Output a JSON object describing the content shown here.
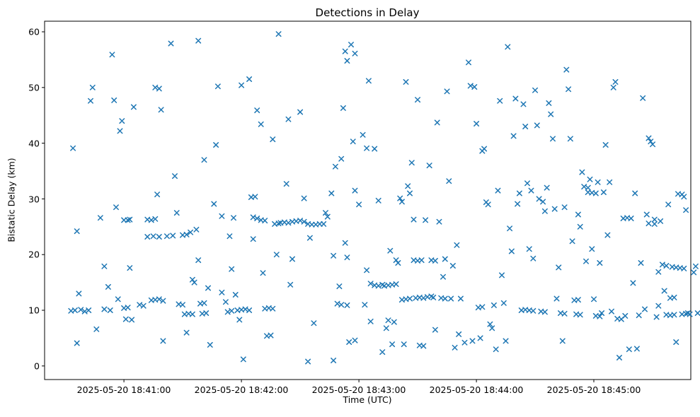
{
  "figure": {
    "title": "Detections in Delay",
    "xlabel": "Time (UTC)",
    "ylabel": "Bistatic Delay (km)"
  },
  "chart_data": {
    "type": "scatter",
    "title": "Detections in Delay",
    "xlabel": "Time (UTC)",
    "ylabel": "Bistatic Delay (km)",
    "marker": "x",
    "marker_color": "#1f77b4",
    "legend": "none",
    "grid": false,
    "x_tick_labels": [
      "2025-05-20 18:41:00",
      "2025-05-20 18:42:00",
      "2025-05-20 18:43:00",
      "2025-05-20 18:44:00",
      "2025-05-20 18:45:00"
    ],
    "x_tick_seconds": [
      60,
      120,
      180,
      240,
      300
    ],
    "x_time_base": "2025-05-20 18:40:00 UTC, x values are seconds after base",
    "xlim_seconds": [
      19.5,
      349.5
    ],
    "y_ticks": [
      0,
      10,
      20,
      30,
      40,
      50,
      60
    ],
    "ylim": [
      -2.43,
      61.9
    ],
    "points": [
      [
        34,
        39.1
      ],
      [
        36,
        24.2
      ],
      [
        37,
        13.0
      ],
      [
        33,
        9.9
      ],
      [
        35,
        10.0
      ],
      [
        38,
        10.1
      ],
      [
        40,
        9.8
      ],
      [
        42,
        10.0
      ],
      [
        36,
        4.1
      ],
      [
        44,
        50.0
      ],
      [
        43,
        47.6
      ],
      [
        46,
        6.6
      ],
      [
        48,
        26.6
      ],
      [
        50,
        17.9
      ],
      [
        52,
        14.2
      ],
      [
        50,
        10.2
      ],
      [
        53,
        10.0
      ],
      [
        54,
        55.9
      ],
      [
        55,
        47.7
      ],
      [
        56,
        28.5
      ],
      [
        57,
        12.0
      ],
      [
        58,
        42.2
      ],
      [
        59,
        44.0
      ],
      [
        60,
        26.2
      ],
      [
        62,
        26.2
      ],
      [
        63,
        26.3
      ],
      [
        60,
        10.4
      ],
      [
        62,
        10.5
      ],
      [
        61,
        8.4
      ],
      [
        64,
        8.3
      ],
      [
        63,
        17.6
      ],
      [
        65,
        46.5
      ],
      [
        68,
        11.0
      ],
      [
        70,
        10.8
      ],
      [
        72,
        26.3
      ],
      [
        74,
        26.2
      ],
      [
        76,
        26.4
      ],
      [
        72,
        23.2
      ],
      [
        75,
        23.3
      ],
      [
        78,
        23.2
      ],
      [
        74,
        11.8
      ],
      [
        76,
        11.9
      ],
      [
        78,
        12.0
      ],
      [
        80,
        11.7
      ],
      [
        76,
        50.0
      ],
      [
        78,
        49.8
      ],
      [
        77,
        30.8
      ],
      [
        79,
        46.0
      ],
      [
        80,
        4.5
      ],
      [
        82,
        23.3
      ],
      [
        85,
        23.4
      ],
      [
        84,
        57.9
      ],
      [
        86,
        34.1
      ],
      [
        87,
        27.5
      ],
      [
        88,
        11.1
      ],
      [
        90,
        11.0
      ],
      [
        90,
        23.5
      ],
      [
        92,
        23.6
      ],
      [
        94,
        24.0
      ],
      [
        91,
        9.3
      ],
      [
        93,
        9.4
      ],
      [
        95,
        9.3
      ],
      [
        92,
        6.0
      ],
      [
        95,
        15.5
      ],
      [
        96,
        15.0
      ],
      [
        97,
        24.5
      ],
      [
        98,
        58.4
      ],
      [
        98,
        19.0
      ],
      [
        99,
        11.2
      ],
      [
        101,
        11.3
      ],
      [
        100,
        9.4
      ],
      [
        102,
        9.5
      ],
      [
        101,
        37.0
      ],
      [
        103,
        14.0
      ],
      [
        104,
        3.8
      ],
      [
        106,
        29.1
      ],
      [
        107,
        39.7
      ],
      [
        108,
        50.2
      ],
      [
        110,
        26.9
      ],
      [
        110,
        13.2
      ],
      [
        112,
        11.5
      ],
      [
        113,
        9.7
      ],
      [
        115,
        9.9
      ],
      [
        114,
        23.3
      ],
      [
        115,
        17.4
      ],
      [
        116,
        26.6
      ],
      [
        117,
        12.8
      ],
      [
        118,
        10.0
      ],
      [
        120,
        10.1
      ],
      [
        122,
        10.2
      ],
      [
        124,
        10.0
      ],
      [
        119,
        8.3
      ],
      [
        120,
        50.4
      ],
      [
        121,
        1.2
      ],
      [
        124,
        51.5
      ],
      [
        125,
        30.3
      ],
      [
        127,
        30.4
      ],
      [
        126,
        26.7
      ],
      [
        128,
        26.5
      ],
      [
        126,
        22.8
      ],
      [
        128,
        45.9
      ],
      [
        130,
        43.4
      ],
      [
        130,
        26.2
      ],
      [
        132,
        26.1
      ],
      [
        131,
        16.7
      ],
      [
        132,
        10.3
      ],
      [
        134,
        10.4
      ],
      [
        136,
        10.3
      ],
      [
        133,
        5.4
      ],
      [
        135,
        5.5
      ],
      [
        136,
        40.7
      ],
      [
        137,
        25.5
      ],
      [
        139,
        25.6
      ],
      [
        138,
        20.0
      ],
      [
        139,
        59.6
      ],
      [
        140,
        25.7
      ],
      [
        142,
        25.8
      ],
      [
        144,
        25.7
      ],
      [
        146,
        25.9
      ],
      [
        143,
        32.7
      ],
      [
        144,
        44.3
      ],
      [
        145,
        14.6
      ],
      [
        146,
        19.2
      ],
      [
        148,
        26.0
      ],
      [
        150,
        26.1
      ],
      [
        152,
        25.9
      ],
      [
        150,
        45.6
      ],
      [
        152,
        30.1
      ],
      [
        154,
        25.5
      ],
      [
        156,
        25.4
      ],
      [
        155,
        23.0
      ],
      [
        157,
        7.7
      ],
      [
        158,
        25.4
      ],
      [
        160,
        25.5
      ],
      [
        162,
        25.5
      ],
      [
        154,
        0.8
      ],
      [
        163,
        27.5
      ],
      [
        164,
        26.8
      ],
      [
        166,
        31.0
      ],
      [
        167,
        19.8
      ],
      [
        168,
        35.8
      ],
      [
        169,
        11.2
      ],
      [
        171,
        11.0
      ],
      [
        170,
        14.3
      ],
      [
        171,
        37.2
      ],
      [
        172,
        46.3
      ],
      [
        173,
        22.1
      ],
      [
        174,
        19.5
      ],
      [
        174,
        10.9
      ],
      [
        175,
        4.3
      ],
      [
        167,
        1.0
      ],
      [
        177,
        40.3
      ],
      [
        178,
        4.6
      ],
      [
        173,
        56.5
      ],
      [
        176,
        57.7
      ],
      [
        174,
        54.8
      ],
      [
        178,
        31.5
      ],
      [
        180,
        29.0
      ],
      [
        182,
        41.5
      ],
      [
        184,
        39.1
      ],
      [
        190,
        29.7
      ],
      [
        185,
        51.2
      ],
      [
        178,
        56.1
      ],
      [
        183,
        11.0
      ],
      [
        184,
        17.2
      ],
      [
        186,
        14.8
      ],
      [
        188,
        14.5
      ],
      [
        190,
        14.4
      ],
      [
        192,
        14.6
      ],
      [
        193,
        14.4
      ],
      [
        195,
        14.5
      ],
      [
        197,
        14.6
      ],
      [
        199,
        14.7
      ],
      [
        186,
        8.0
      ],
      [
        192,
        2.5
      ],
      [
        194,
        6.8
      ],
      [
        195,
        8.2
      ],
      [
        188,
        39.0
      ],
      [
        196,
        20.7
      ],
      [
        197,
        3.9
      ],
      [
        198,
        7.9
      ],
      [
        199,
        19.0
      ],
      [
        200,
        18.5
      ],
      [
        201,
        30.1
      ],
      [
        202,
        29.5
      ],
      [
        202,
        11.9
      ],
      [
        204,
        12.0
      ],
      [
        206,
        12.1
      ],
      [
        203,
        3.9
      ],
      [
        204,
        51.0
      ],
      [
        205,
        32.3
      ],
      [
        206,
        31.0
      ],
      [
        207,
        36.5
      ],
      [
        208,
        26.3
      ],
      [
        208,
        19.0
      ],
      [
        210,
        18.9
      ],
      [
        212,
        19.0
      ],
      [
        209,
        12.2
      ],
      [
        211,
        12.3
      ],
      [
        213,
        12.2
      ],
      [
        210,
        47.8
      ],
      [
        211,
        3.7
      ],
      [
        213,
        3.6
      ],
      [
        214,
        26.2
      ],
      [
        215,
        12.4
      ],
      [
        217,
        12.5
      ],
      [
        216,
        36.0
      ],
      [
        217,
        19.0
      ],
      [
        219,
        18.9
      ],
      [
        218,
        12.3
      ],
      [
        219,
        6.5
      ],
      [
        220,
        43.7
      ],
      [
        221,
        25.9
      ],
      [
        222,
        12.2
      ],
      [
        224,
        12.1
      ],
      [
        223,
        16.0
      ],
      [
        224,
        19.2
      ],
      [
        225,
        49.3
      ],
      [
        226,
        33.2
      ],
      [
        227,
        12.1
      ],
      [
        228,
        18.0
      ],
      [
        229,
        3.3
      ],
      [
        230,
        21.7
      ],
      [
        231,
        5.7
      ],
      [
        232,
        12.1
      ],
      [
        234,
        4.2
      ],
      [
        236,
        54.5
      ],
      [
        237,
        50.3
      ],
      [
        238,
        4.5
      ],
      [
        239,
        50.1
      ],
      [
        240,
        43.5
      ],
      [
        241,
        10.5
      ],
      [
        243,
        10.6
      ],
      [
        242,
        5.0
      ],
      [
        243,
        38.6
      ],
      [
        244,
        39.0
      ],
      [
        245,
        29.4
      ],
      [
        246,
        29.0
      ],
      [
        247,
        7.5
      ],
      [
        248,
        6.8
      ],
      [
        249,
        10.9
      ],
      [
        250,
        3.0
      ],
      [
        251,
        31.5
      ],
      [
        252,
        47.6
      ],
      [
        253,
        16.3
      ],
      [
        254,
        11.3
      ],
      [
        255,
        4.5
      ],
      [
        256,
        57.3
      ],
      [
        257,
        24.7
      ],
      [
        258,
        20.6
      ],
      [
        259,
        41.3
      ],
      [
        260,
        48.0
      ],
      [
        261,
        29.1
      ],
      [
        262,
        31.0
      ],
      [
        263,
        10.0
      ],
      [
        265,
        10.1
      ],
      [
        267,
        10.0
      ],
      [
        269,
        9.9
      ],
      [
        264,
        47.0
      ],
      [
        265,
        43.0
      ],
      [
        266,
        32.8
      ],
      [
        267,
        21.0
      ],
      [
        268,
        31.5
      ],
      [
        269,
        19.3
      ],
      [
        270,
        49.5
      ],
      [
        271,
        43.2
      ],
      [
        272,
        30.0
      ],
      [
        273,
        9.8
      ],
      [
        275,
        9.7
      ],
      [
        274,
        29.5
      ],
      [
        275,
        27.8
      ],
      [
        276,
        32.0
      ],
      [
        277,
        47.2
      ],
      [
        278,
        45.2
      ],
      [
        279,
        40.8
      ],
      [
        280,
        28.2
      ],
      [
        281,
        12.1
      ],
      [
        282,
        17.7
      ],
      [
        283,
        9.5
      ],
      [
        285,
        9.4
      ],
      [
        284,
        4.5
      ],
      [
        285,
        28.5
      ],
      [
        286,
        53.2
      ],
      [
        287,
        49.7
      ],
      [
        288,
        40.8
      ],
      [
        289,
        22.4
      ],
      [
        290,
        11.8
      ],
      [
        292,
        11.9
      ],
      [
        291,
        9.3
      ],
      [
        293,
        9.2
      ],
      [
        292,
        27.2
      ],
      [
        293,
        25.0
      ],
      [
        294,
        34.8
      ],
      [
        295,
        32.2
      ],
      [
        297,
        32.0
      ],
      [
        296,
        18.8
      ],
      [
        297,
        31.2
      ],
      [
        299,
        31.1
      ],
      [
        301,
        31.0
      ],
      [
        298,
        33.5
      ],
      [
        299,
        21.0
      ],
      [
        300,
        12.0
      ],
      [
        301,
        9.0
      ],
      [
        303,
        8.9
      ],
      [
        302,
        33.0
      ],
      [
        303,
        18.5
      ],
      [
        304,
        9.5
      ],
      [
        305,
        31.2
      ],
      [
        306,
        39.7
      ],
      [
        307,
        23.5
      ],
      [
        308,
        33.0
      ],
      [
        309,
        9.8
      ],
      [
        310,
        50.0
      ],
      [
        311,
        51.0
      ],
      [
        312,
        8.5
      ],
      [
        314,
        8.4
      ],
      [
        313,
        1.5
      ],
      [
        315,
        26.5
      ],
      [
        317,
        26.6
      ],
      [
        319,
        26.5
      ],
      [
        316,
        9.0
      ],
      [
        318,
        3.0
      ],
      [
        320,
        14.9
      ],
      [
        321,
        31.0
      ],
      [
        322,
        3.1
      ],
      [
        323,
        9.1
      ],
      [
        324,
        18.5
      ],
      [
        325,
        48.1
      ],
      [
        326,
        10.2
      ],
      [
        327,
        27.2
      ],
      [
        328,
        40.9
      ],
      [
        329,
        40.3
      ],
      [
        330,
        39.8
      ],
      [
        328,
        25.6
      ],
      [
        331,
        25.5
      ],
      [
        331,
        26.3
      ],
      [
        332,
        8.8
      ],
      [
        333,
        10.8
      ],
      [
        333,
        16.9
      ],
      [
        334,
        26.0
      ],
      [
        335,
        18.2
      ],
      [
        337,
        18.0
      ],
      [
        336,
        13.5
      ],
      [
        337,
        9.2
      ],
      [
        339,
        9.1
      ],
      [
        341,
        9.2
      ],
      [
        338,
        29.0
      ],
      [
        339,
        12.2
      ],
      [
        341,
        12.3
      ],
      [
        340,
        17.8
      ],
      [
        342,
        17.7
      ],
      [
        344,
        17.6
      ],
      [
        342,
        4.3
      ],
      [
        343,
        30.9
      ],
      [
        345,
        30.8
      ],
      [
        345,
        9.3
      ],
      [
        347,
        9.4
      ],
      [
        349,
        9.3
      ],
      [
        346,
        17.5
      ],
      [
        347,
        28.0
      ],
      [
        348,
        9.5
      ],
      [
        346,
        30.4
      ],
      [
        351,
        16.8
      ],
      [
        352,
        17.9
      ],
      [
        353,
        9.5
      ]
    ]
  }
}
